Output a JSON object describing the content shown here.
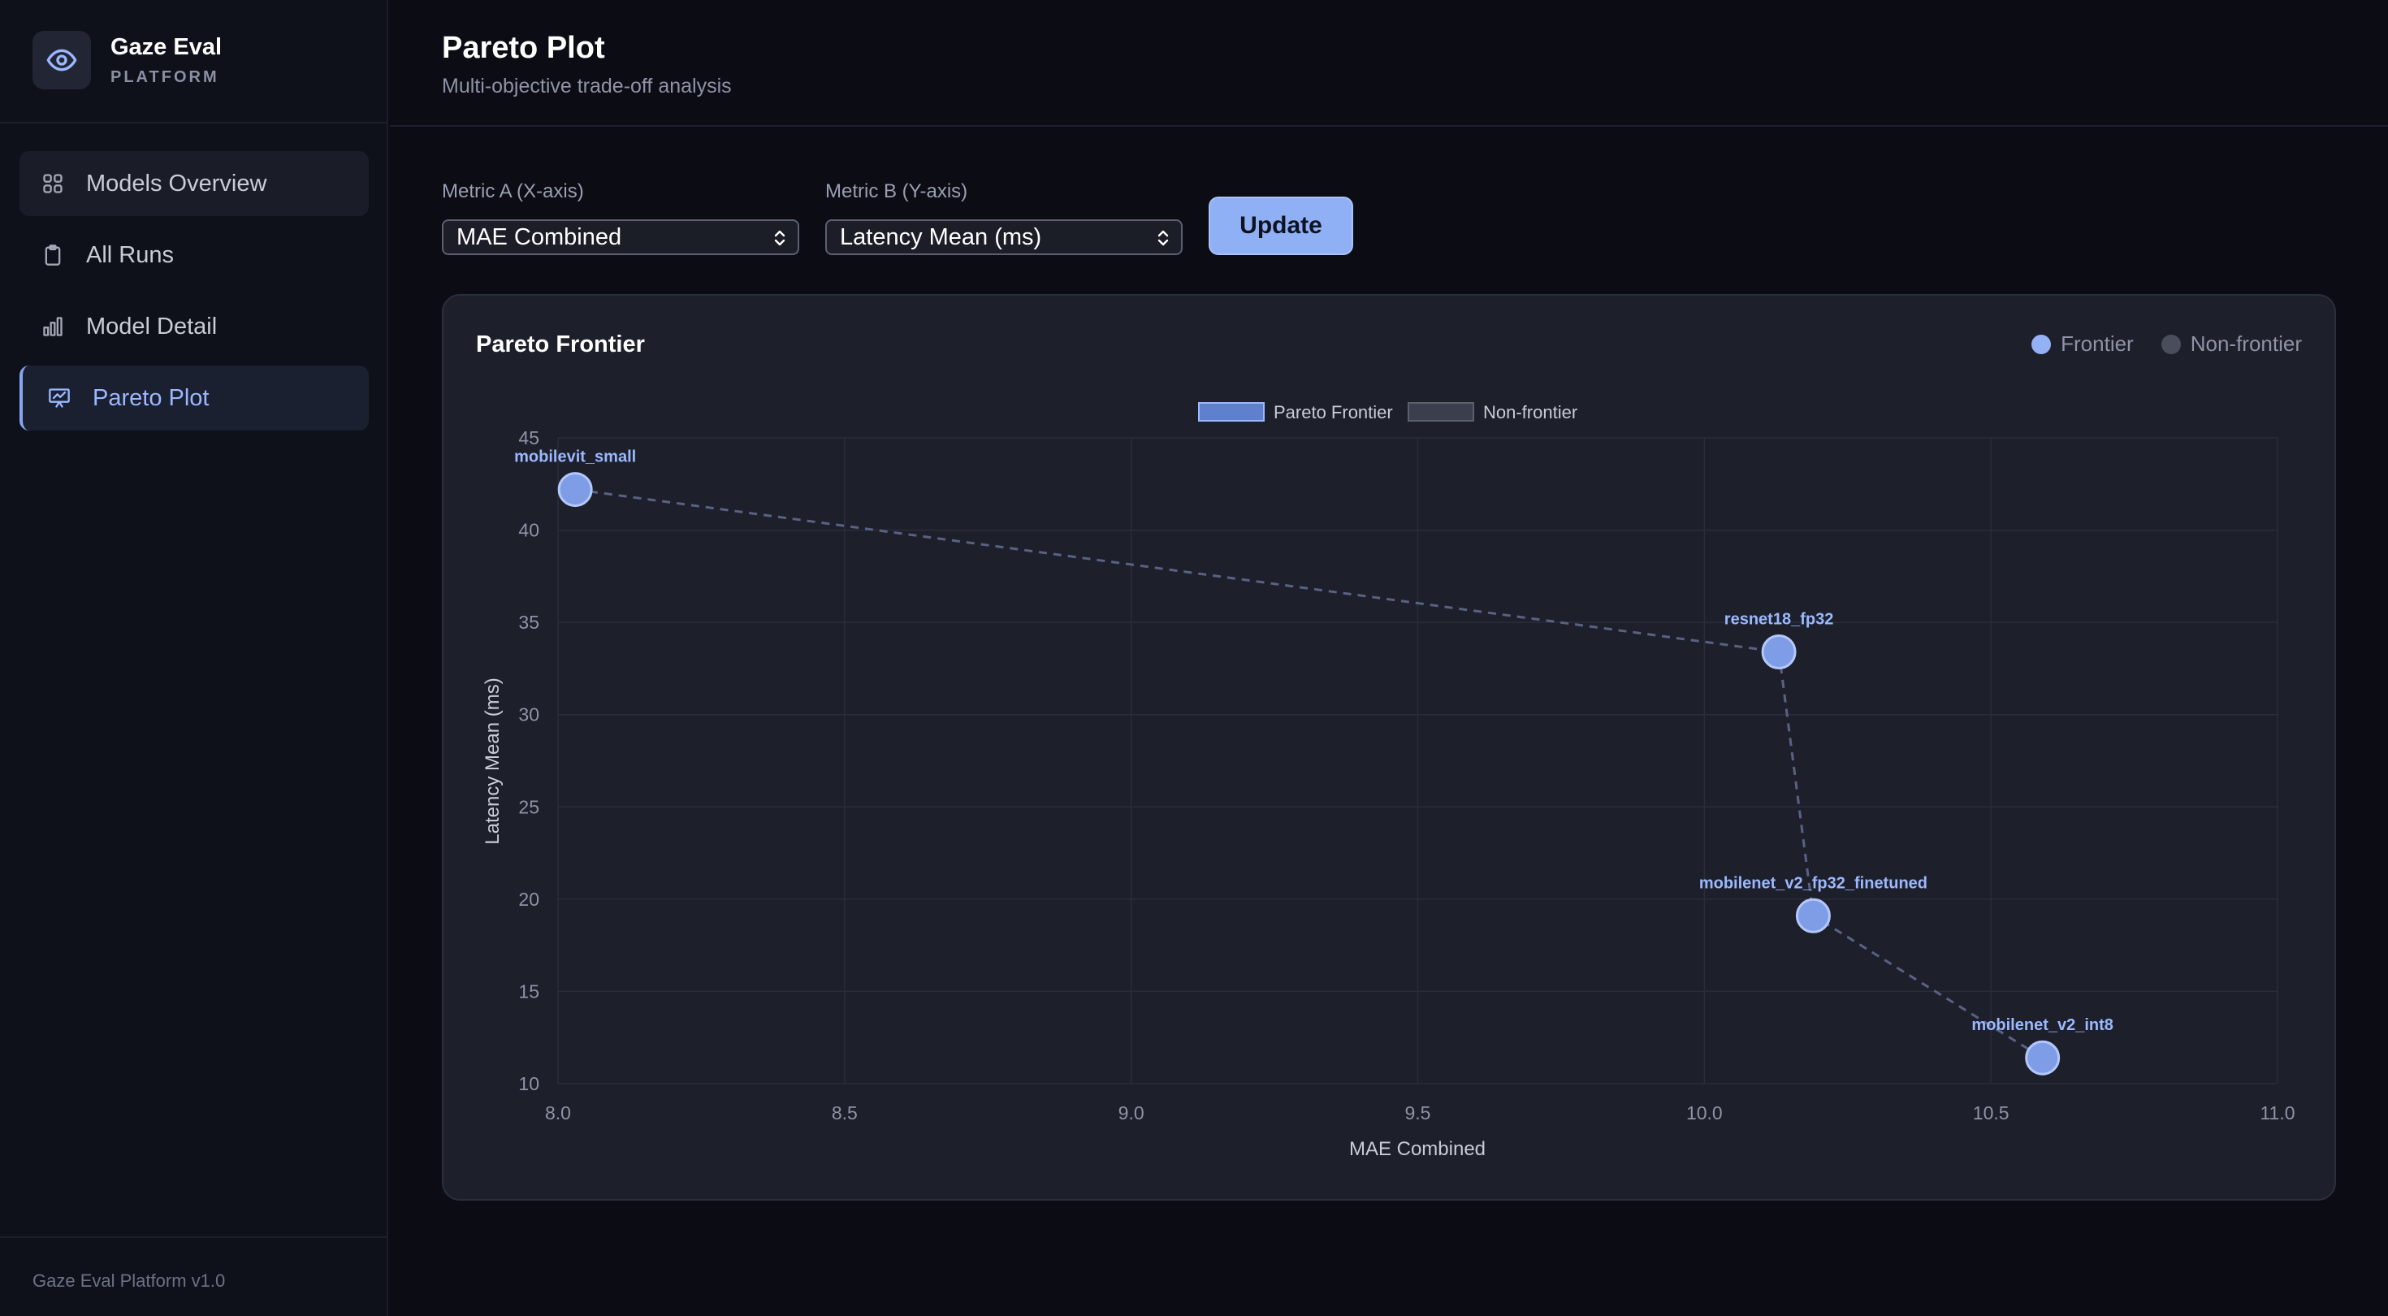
{
  "brand": {
    "title": "Gaze Eval",
    "subtitle": "PLATFORM"
  },
  "sidebar": {
    "items": [
      {
        "label": "Models Overview",
        "icon": "grid-icon",
        "state": "hovered"
      },
      {
        "label": "All Runs",
        "icon": "clipboard-icon",
        "state": "normal"
      },
      {
        "label": "Model Detail",
        "icon": "bar-chart-icon",
        "state": "normal"
      },
      {
        "label": "Pareto Plot",
        "icon": "presentation-chart-icon",
        "state": "active"
      }
    ],
    "footer": "Gaze Eval Platform v1.0"
  },
  "header": {
    "title": "Pareto Plot",
    "subtitle": "Multi-objective trade-off analysis"
  },
  "controls": {
    "metric_a_label": "Metric A (X-axis)",
    "metric_a_value": "MAE Combined",
    "metric_b_label": "Metric B (Y-axis)",
    "metric_b_value": "Latency Mean (ms)",
    "update_label": "Update"
  },
  "card": {
    "title": "Pareto Frontier",
    "legend": [
      {
        "label": "Frontier",
        "color": "#93b1f4"
      },
      {
        "label": "Non-frontier",
        "color": "#4a4e5c"
      }
    ]
  },
  "colors": {
    "accent": "#8fb0f5",
    "frontier": "#93b1f4",
    "non_frontier": "#4a4e5c"
  },
  "chart_data": {
    "type": "scatter",
    "title": "",
    "xlabel": "MAE Combined",
    "ylabel": "Latency Mean (ms)",
    "xlim": [
      8.0,
      11.0
    ],
    "ylim": [
      10,
      45
    ],
    "xticks": [
      "8.0",
      "8.5",
      "9.0",
      "9.5",
      "10.0",
      "10.5",
      "11.0"
    ],
    "yticks": [
      "10",
      "15",
      "20",
      "25",
      "30",
      "35",
      "40",
      "45"
    ],
    "grid": true,
    "legend": [
      {
        "name": "Pareto Frontier"
      },
      {
        "name": "Non-frontier"
      }
    ],
    "series": [
      {
        "name": "Pareto Frontier",
        "connected": true,
        "points": [
          {
            "label": "mobilevit_small",
            "x": 8.03,
            "y": 42.2
          },
          {
            "label": "resnet18_fp32",
            "x": 10.13,
            "y": 33.4
          },
          {
            "label": "mobilenet_v2_fp32_finetuned",
            "x": 10.19,
            "y": 19.1
          },
          {
            "label": "mobilenet_v2_int8",
            "x": 10.59,
            "y": 11.4
          }
        ]
      },
      {
        "name": "Non-frontier",
        "points": []
      }
    ]
  }
}
